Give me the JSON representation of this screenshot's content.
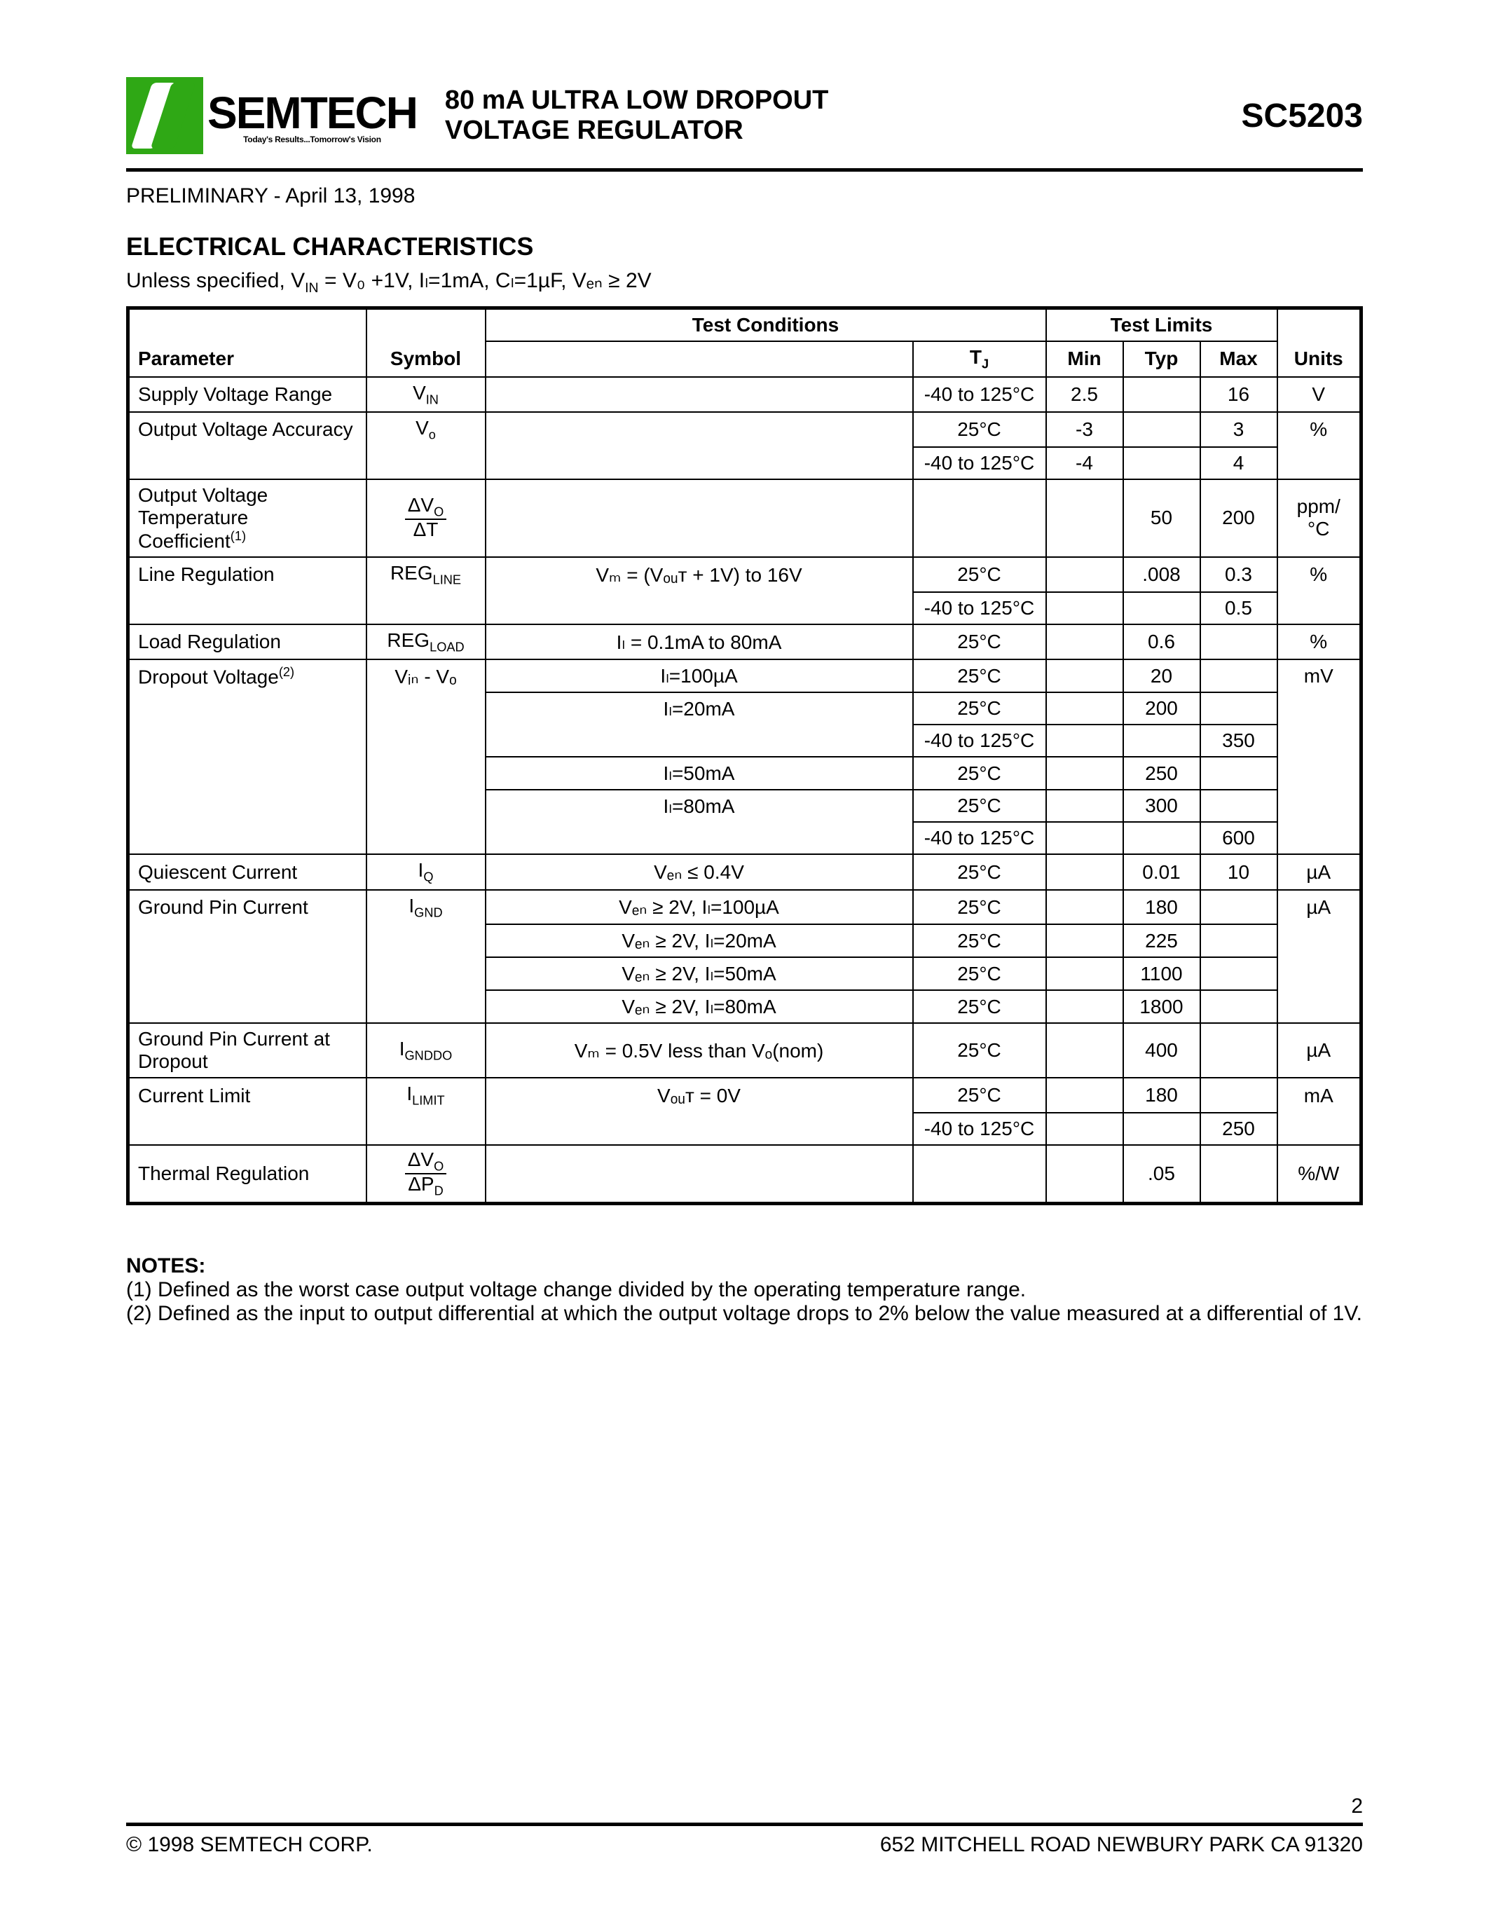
{
  "header": {
    "company": "SEMTECH",
    "tagline": "Today's Results...Tomorrow's Vision",
    "title_l1": "80 mA ULTRA LOW DROPOUT",
    "title_l2": "VOLTAGE REGULATOR",
    "part": "SC5203"
  },
  "prelim": "PRELIMINARY - April 13, 1998",
  "section": "ELECTRICAL CHARACTERISTICS",
  "cond_prefix": "Unless specified, V",
  "cond_rest": " = V₀ +1V, Iₗ=1mA, Cₗ=1µF, Vₑₙ ≥ 2V",
  "th": {
    "tc": "Test Conditions",
    "tl": "Test Limits",
    "param": "Parameter",
    "sym": "Symbol",
    "tj": "T",
    "tj_sub": "J",
    "min": "Min",
    "typ": "Typ",
    "max": "Max",
    "units": "Units"
  },
  "rows": {
    "svr": {
      "p": "Supply Voltage Range",
      "s": "V",
      "ss": "IN",
      "tj": "-40 to 125°C",
      "min": "2.5",
      "max": "16",
      "u": "V"
    },
    "ova1": {
      "p": "Output Voltage Accuracy",
      "s": "V",
      "ss": "o",
      "tj": "25°C",
      "min": "-3",
      "max": "3",
      "u": "%"
    },
    "ova2": {
      "tj": "-40 to 125°C",
      "min": "-4",
      "max": "4"
    },
    "ovt": {
      "p": "Output Voltage Temperature Coefficient",
      "sup": "(1)",
      "typ": "50",
      "max": "200",
      "u": "ppm/°C"
    },
    "lr1": {
      "p": "Line Regulation",
      "s": "REG",
      "ss": "LINE",
      "c": "Vₘ = (Vₒᵤᴛ + 1V) to 16V",
      "tj": "25°C",
      "typ": ".008",
      "max": "0.3",
      "u": "%"
    },
    "lr2": {
      "tj": "-40 to 125°C",
      "max": "0.5"
    },
    "ldr": {
      "p": "Load Regulation",
      "s": "REG",
      "ss": "LOAD",
      "c": "Iₗ = 0.1mA to 80mA",
      "tj": "25°C",
      "typ": "0.6",
      "u": "%"
    },
    "dv1": {
      "p": "Dropout Voltage",
      "sup": "(2)",
      "s": "Vᵢₙ - Vₒ",
      "c": "Iₗ=100µA",
      "tj": "25°C",
      "typ": "20",
      "u": "mV"
    },
    "dv2": {
      "c": "Iₗ=20mA",
      "tj": "25°C",
      "typ": "200"
    },
    "dv3": {
      "tj": "-40 to 125°C",
      "max": "350"
    },
    "dv4": {
      "c": "Iₗ=50mA",
      "tj": "25°C",
      "typ": "250"
    },
    "dv5": {
      "c": "Iₗ=80mA",
      "tj": "25°C",
      "typ": "300"
    },
    "dv6": {
      "tj": "-40 to 125°C",
      "max": "600"
    },
    "qc": {
      "p": "Quiescent Current",
      "s": "I",
      "ss": "Q",
      "c": "Vₑₙ ≤ 0.4V",
      "tj": "25°C",
      "typ": "0.01",
      "max": "10",
      "u": "µA"
    },
    "gp1": {
      "p": "Ground Pin Current",
      "s": "I",
      "ss": "GND",
      "c": "Vₑₙ ≥  2V, Iₗ=100µA",
      "tj": "25°C",
      "typ": "180",
      "u": "µA"
    },
    "gp2": {
      "c": "Vₑₙ ≥  2V, Iₗ=20mA",
      "tj": "25°C",
      "typ": "225"
    },
    "gp3": {
      "c": "Vₑₙ ≥  2V, Iₗ=50mA",
      "tj": "25°C",
      "typ": "1100"
    },
    "gp4": {
      "c": "Vₑₙ ≥  2V, Iₗ=80mA",
      "tj": "25°C",
      "typ": "1800"
    },
    "gpd": {
      "p": "Ground Pin Current at Dropout",
      "s": "I",
      "ss": "GNDDO",
      "c": "Vₘ = 0.5V less than Vₒ(nom)",
      "tj": "25°C",
      "typ": "400",
      "u": "µA"
    },
    "cl1": {
      "p": "Current Limit",
      "s": "I",
      "ss": "LIMIT",
      "c": "Vₒᵤᴛ = 0V",
      "tj": "25°C",
      "typ": "180",
      "u": "mA"
    },
    "cl2": {
      "tj": "-40 to 125°C",
      "max": "250"
    },
    "tr": {
      "p": "Thermal Regulation",
      "typ": ".05",
      "u": "%/W"
    }
  },
  "notes": {
    "h": "NOTES:",
    "n1": "(1)  Defined as the worst case output voltage change divided by the operating temperature range.",
    "n2": "(2)  Defined as the input to output differential at which the output voltage drops to 2% below the value measured at a differential of 1V."
  },
  "footer": {
    "page": "2",
    "copy": "© 1998 SEMTECH CORP.",
    "addr": "652 MITCHELL ROAD  NEWBURY PARK  CA 91320"
  },
  "frac": {
    "dvo": "ΔV",
    "dvo_s": "O",
    "dt": "ΔT",
    "dpd": "ΔP",
    "dpd_s": "D"
  }
}
